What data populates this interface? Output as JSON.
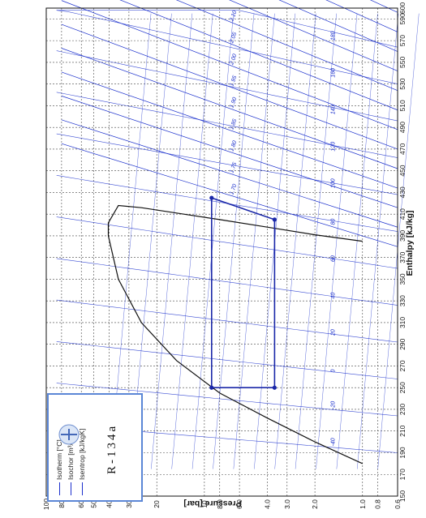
{
  "chart_data": {
    "type": "line",
    "title": "",
    "xlabel": "Pressure [bar]",
    "ylabel": "Enthalpy [kJ/kg]",
    "x_log_ticks": [
      "0.6",
      "0.8",
      "1.0",
      "2.0",
      "3.0",
      "4.0",
      "6.0",
      "8.0",
      "10",
      "20",
      "30",
      "40",
      "50",
      "60",
      "80",
      "100"
    ],
    "y_ticks": [
      "150",
      "170",
      "190",
      "210",
      "230",
      "250",
      "270",
      "290",
      "310",
      "330",
      "350",
      "370",
      "390",
      "410",
      "430",
      "450",
      "470",
      "490",
      "510",
      "530",
      "550",
      "570",
      "590",
      "600"
    ],
    "saturation_dome": {
      "liquid": [
        [
          1.0,
          180
        ],
        [
          2.0,
          200
        ],
        [
          4.0,
          222
        ],
        [
          8.0,
          245
        ],
        [
          15,
          275
        ],
        [
          25,
          310
        ],
        [
          35,
          350
        ],
        [
          40.5,
          390
        ]
      ],
      "vapor": [
        [
          1.0,
          385
        ],
        [
          2.0,
          391
        ],
        [
          4.0,
          398
        ],
        [
          8.0,
          405
        ],
        [
          15,
          411
        ],
        [
          25,
          416
        ],
        [
          35,
          418
        ],
        [
          40.5,
          402
        ]
      ]
    },
    "series": [
      {
        "name": "",
        "points": [
          [
            9.0,
            250
          ],
          [
            3.6,
            250
          ],
          [
            3.6,
            405
          ],
          [
            9.0,
            425
          ]
        ]
      }
    ],
    "legend": {
      "items": [
        "Isotherm [°C]",
        "Isochor [m³/kg]",
        "Isentrop [kJ/kgK]"
      ],
      "refrigerant": "R-134a"
    },
    "isotherm_labels": [
      "-40",
      "-20",
      "0",
      "20",
      "40",
      "60",
      "80",
      "100",
      "120",
      "140",
      "160",
      "180"
    ],
    "isentrope_labels": [
      "1.70",
      "1.75",
      "1.80",
      "1.85",
      "1.90",
      "1.95",
      "2.00",
      "2.05",
      "2.10",
      "2.15",
      "2.20",
      "2.25",
      "2.30",
      "2.35"
    ],
    "grid": true,
    "log_scale": "pressure",
    "colors": {
      "grid": "#444444",
      "isolines": "#1a2fcc",
      "cycle": "#1a27a8",
      "dome": "#111111",
      "legend_border": "#5b86d6"
    }
  }
}
